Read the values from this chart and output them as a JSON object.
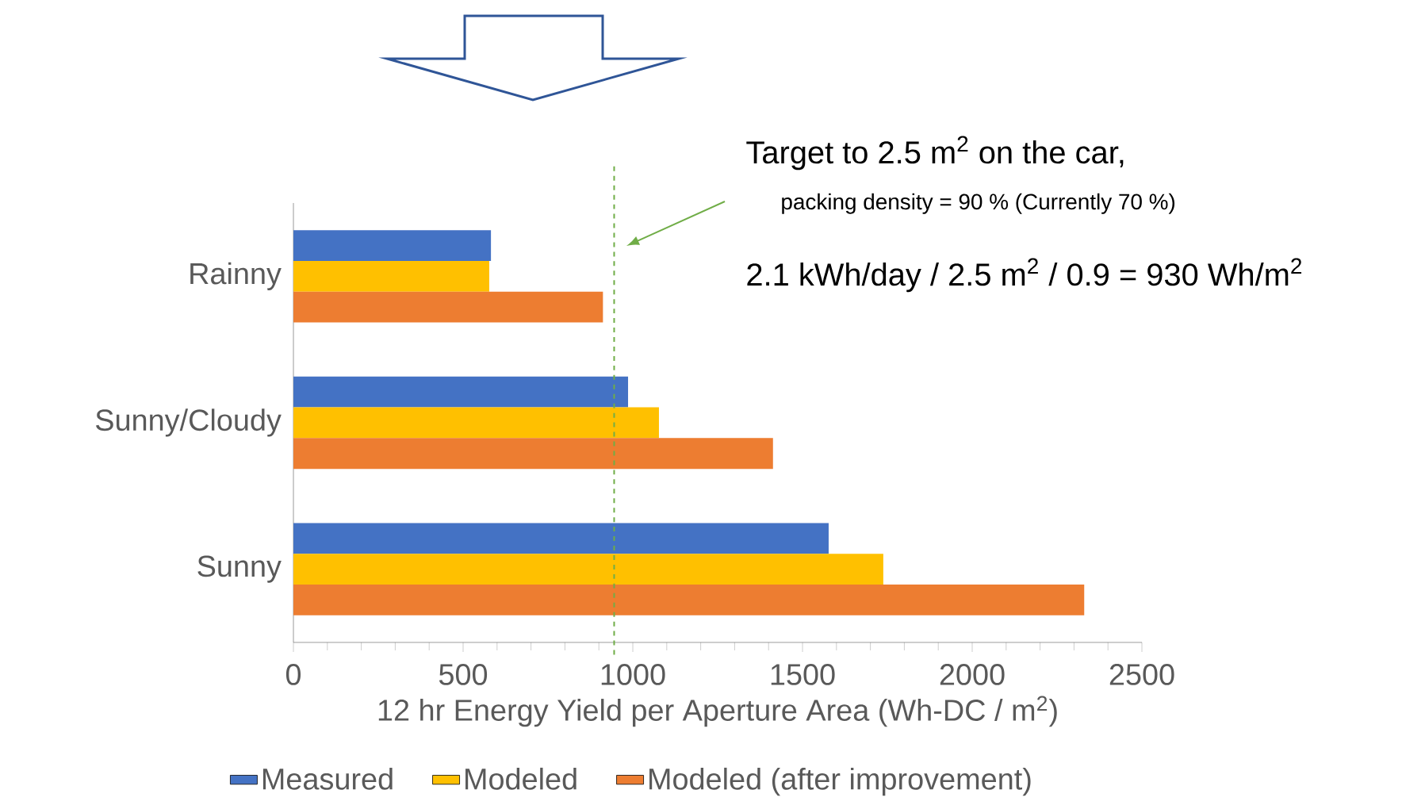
{
  "chart_data": {
    "type": "bar",
    "orientation": "horizontal",
    "categories": [
      "Rainny",
      "Sunny/Cloudy",
      "Sunny"
    ],
    "series": [
      {
        "name": "Measured",
        "color": "#4472c4",
        "values": [
          582,
          986,
          1577
        ]
      },
      {
        "name": "Modeled",
        "color": "#ffc000",
        "values": [
          577,
          1077,
          1738
        ]
      },
      {
        "name": "Modeled (after improvement)",
        "color": "#ed7d31",
        "values": [
          912,
          1413,
          2330
        ]
      }
    ],
    "xlim": [
      0,
      2500
    ],
    "xticks": [
      0,
      500,
      1000,
      1500,
      2000,
      2500
    ],
    "xlabel": "12 hr Energy Yield per Aperture Area (Wh-DC / m$^{2}$)",
    "legend": "bottom",
    "grid": false,
    "ref_lines": [
      {
        "axis": "x",
        "value": 945,
        "color": "#70ad47",
        "line_style": "dashed"
      }
    ],
    "annotations": [
      "Target to 2.5 m$^{2}$ on the car,",
      "packing density = 90 % (Currently 70 %)",
      "2.1 kWh/day / 2.5 m$^{2}$ / 0.9 = 930 Wh/m$^{2}$"
    ]
  }
}
